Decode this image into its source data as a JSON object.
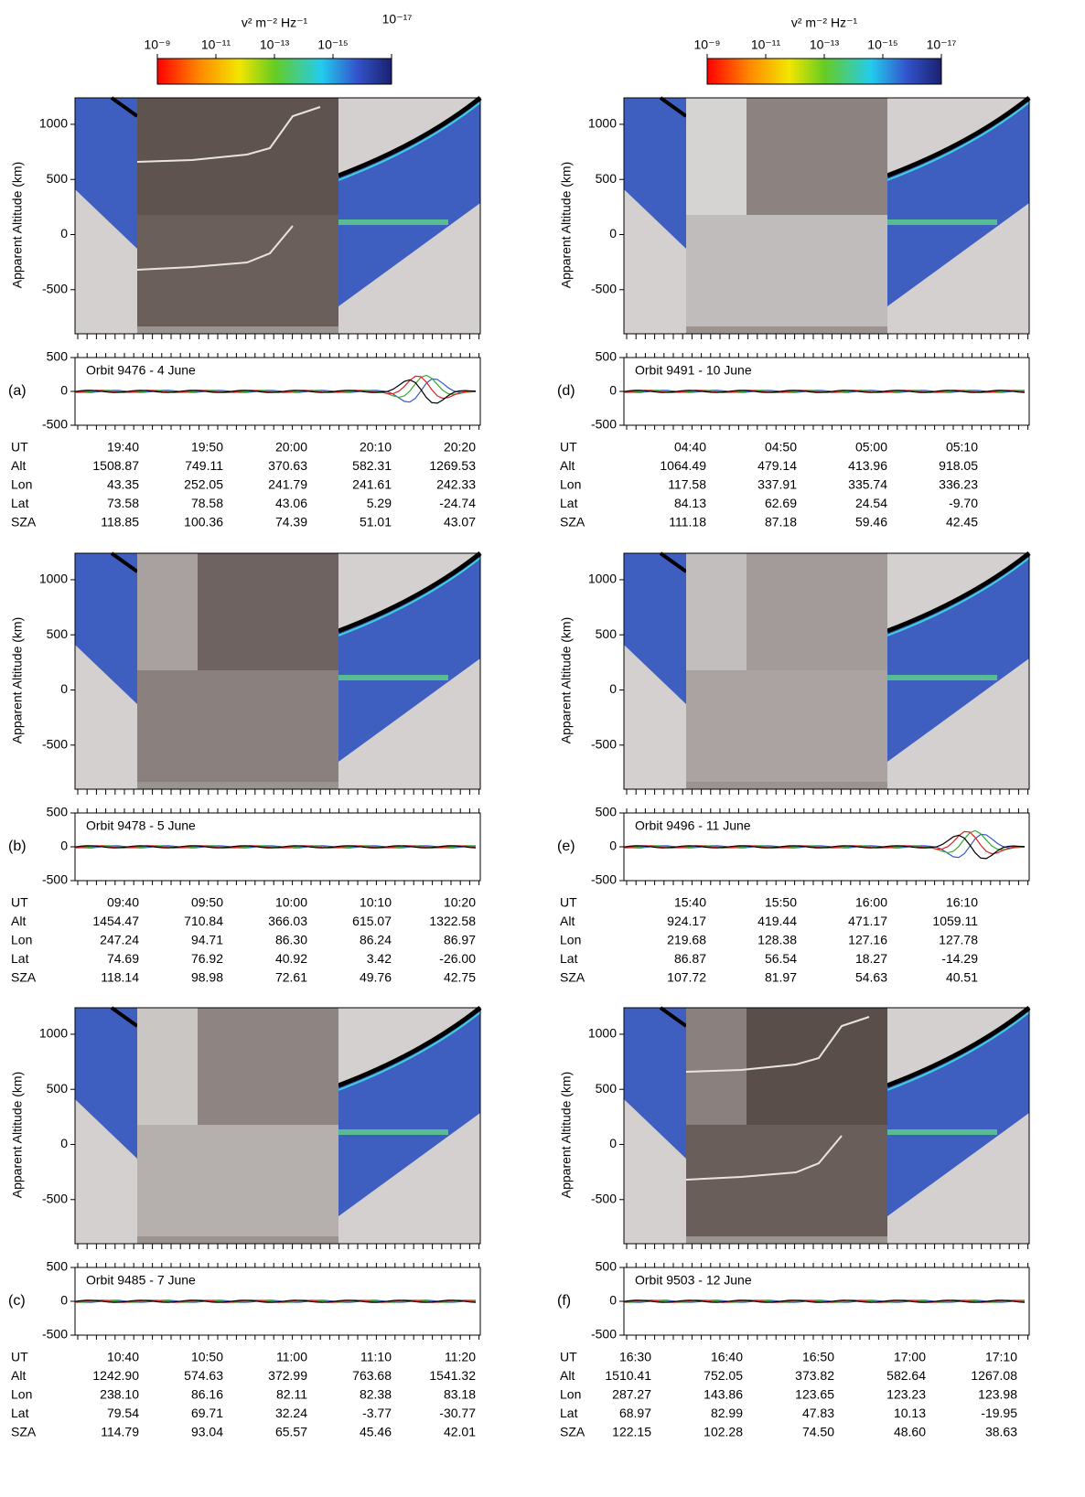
{
  "colorbars": [
    {
      "title": "v² m⁻² Hz⁻¹",
      "ticks": [
        {
          "value": 1e-09,
          "label": "10⁻⁹"
        },
        {
          "value": 1e-11,
          "label": "10⁻¹¹"
        },
        {
          "value": 1e-13,
          "label": "10⁻¹³"
        },
        {
          "value": 1e-15,
          "label": "10⁻¹⁵"
        },
        {
          "value": 1e-17,
          "label": "10⁻¹⁷"
        }
      ]
    },
    {
      "title": "v² m⁻² Hz⁻¹",
      "ticks": [
        {
          "value": 1e-09,
          "label": "10⁻⁹"
        },
        {
          "value": 1e-11,
          "label": "10⁻¹¹"
        },
        {
          "value": 1e-13,
          "label": "10⁻¹³"
        },
        {
          "value": 1e-15,
          "label": "10⁻¹⁵"
        },
        {
          "value": 1e-17,
          "label": "10⁻¹⁷"
        }
      ]
    }
  ],
  "chart_data": [
    {
      "type": "spectrogram",
      "panel_label": "(a)",
      "title": "Orbit 9476 - 4 June",
      "y_label": "Apparent Altitude (km)",
      "ylim": [
        -900,
        1240
      ],
      "yticks": [
        -500,
        0,
        500,
        1000
      ],
      "y2lim": [
        -500,
        500
      ],
      "y2ticks": [
        -500,
        0,
        500
      ],
      "table": {
        "rows": [
          [
            "UT",
            "19:40",
            "19:50",
            "20:00",
            "20:10",
            "20:20"
          ],
          [
            "Alt",
            "1508.87",
            "749.11",
            "370.63",
            "582.31",
            "1269.53"
          ],
          [
            "Lon",
            "43.35",
            "252.05",
            "241.79",
            "241.61",
            "242.33"
          ],
          [
            "Lat",
            "73.58",
            "78.58",
            "43.06",
            "5.29",
            "-24.74"
          ],
          [
            "SZA",
            "118.85",
            "100.36",
            "74.39",
            "51.01",
            "43.07"
          ]
        ]
      }
    },
    {
      "type": "spectrogram",
      "panel_label": "(b)",
      "title": "Orbit 9478 - 5 June",
      "y_label": "Apparent Altitude (km)",
      "ylim": [
        -900,
        1240
      ],
      "yticks": [
        -500,
        0,
        500,
        1000
      ],
      "y2lim": [
        -500,
        500
      ],
      "y2ticks": [
        -500,
        0,
        500
      ],
      "table": {
        "rows": [
          [
            "UT",
            "09:40",
            "09:50",
            "10:00",
            "10:10",
            "10:20"
          ],
          [
            "Alt",
            "1454.47",
            "710.84",
            "366.03",
            "615.07",
            "1322.58"
          ],
          [
            "Lon",
            "247.24",
            "94.71",
            "86.30",
            "86.24",
            "86.97"
          ],
          [
            "Lat",
            "74.69",
            "76.92",
            "40.92",
            "3.42",
            "-26.00"
          ],
          [
            "SZA",
            "118.14",
            "98.98",
            "72.61",
            "49.76",
            "42.75"
          ]
        ]
      }
    },
    {
      "type": "spectrogram",
      "panel_label": "(c)",
      "title": "Orbit 9485 - 7 June",
      "y_label": "Apparent Altitude (km)",
      "ylim": [
        -900,
        1240
      ],
      "yticks": [
        -500,
        0,
        500,
        1000
      ],
      "y2lim": [
        -500,
        500
      ],
      "y2ticks": [
        -500,
        0,
        500
      ],
      "table": {
        "rows": [
          [
            "UT",
            "10:40",
            "10:50",
            "11:00",
            "11:10",
            "11:20"
          ],
          [
            "Alt",
            "1242.90",
            "574.63",
            "372.99",
            "763.68",
            "1541.32"
          ],
          [
            "Lon",
            "238.10",
            "86.16",
            "82.11",
            "82.38",
            "83.18"
          ],
          [
            "Lat",
            "79.54",
            "69.71",
            "32.24",
            "-3.77",
            "-30.77"
          ],
          [
            "SZA",
            "114.79",
            "93.04",
            "65.57",
            "45.46",
            "42.01"
          ]
        ]
      }
    },
    {
      "type": "spectrogram",
      "panel_label": "(d)",
      "title": "Orbit 9491 - 10 June",
      "y_label": "Apparent Altitude (km)",
      "ylim": [
        -900,
        1240
      ],
      "yticks": [
        -500,
        0,
        500,
        1000
      ],
      "y2lim": [
        -500,
        500
      ],
      "y2ticks": [
        -500,
        0,
        500
      ],
      "table": {
        "rows": [
          [
            "UT",
            "04:40",
            "04:50",
            "05:00",
            "05:10"
          ],
          [
            "Alt",
            "1064.49",
            "479.14",
            "413.96",
            "918.05"
          ],
          [
            "Lon",
            "117.58",
            "337.91",
            "335.74",
            "336.23"
          ],
          [
            "Lat",
            "84.13",
            "62.69",
            "24.54",
            "-9.70"
          ],
          [
            "SZA",
            "111.18",
            "87.18",
            "59.46",
            "42.45"
          ]
        ]
      }
    },
    {
      "type": "spectrogram",
      "panel_label": "(e)",
      "title": "Orbit 9496 - 11 June",
      "y_label": "Apparent Altitude (km)",
      "ylim": [
        -900,
        1240
      ],
      "yticks": [
        -500,
        0,
        500,
        1000
      ],
      "y2lim": [
        -500,
        500
      ],
      "y2ticks": [
        -500,
        0,
        500
      ],
      "table": {
        "rows": [
          [
            "UT",
            "15:40",
            "15:50",
            "16:00",
            "16:10"
          ],
          [
            "Alt",
            "924.17",
            "419.44",
            "471.17",
            "1059.11"
          ],
          [
            "Lon",
            "219.68",
            "128.38",
            "127.16",
            "127.78"
          ],
          [
            "Lat",
            "86.87",
            "56.54",
            "18.27",
            "-14.29"
          ],
          [
            "SZA",
            "107.72",
            "81.97",
            "54.63",
            "40.51"
          ]
        ]
      }
    },
    {
      "type": "spectrogram",
      "panel_label": "(f)",
      "title": "Orbit 9503 - 12 June",
      "y_label": "Apparent Altitude (km)",
      "ylim": [
        -900,
        1240
      ],
      "yticks": [
        -500,
        0,
        500,
        1000
      ],
      "y2lim": [
        -500,
        500
      ],
      "y2ticks": [
        -500,
        0,
        500
      ],
      "table": {
        "rows": [
          [
            "UT",
            "16:30",
            "16:40",
            "16:50",
            "17:00",
            "17:10"
          ],
          [
            "Alt",
            "1510.41",
            "752.05",
            "373.82",
            "582.64",
            "1267.08"
          ],
          [
            "Lon",
            "287.27",
            "143.86",
            "123.65",
            "123.23",
            "123.98"
          ],
          [
            "Lat",
            "68.97",
            "82.99",
            "47.83",
            "10.13",
            "-19.95"
          ],
          [
            "SZA",
            "122.15",
            "102.28",
            "74.50",
            "48.60",
            "38.63"
          ]
        ]
      }
    }
  ]
}
